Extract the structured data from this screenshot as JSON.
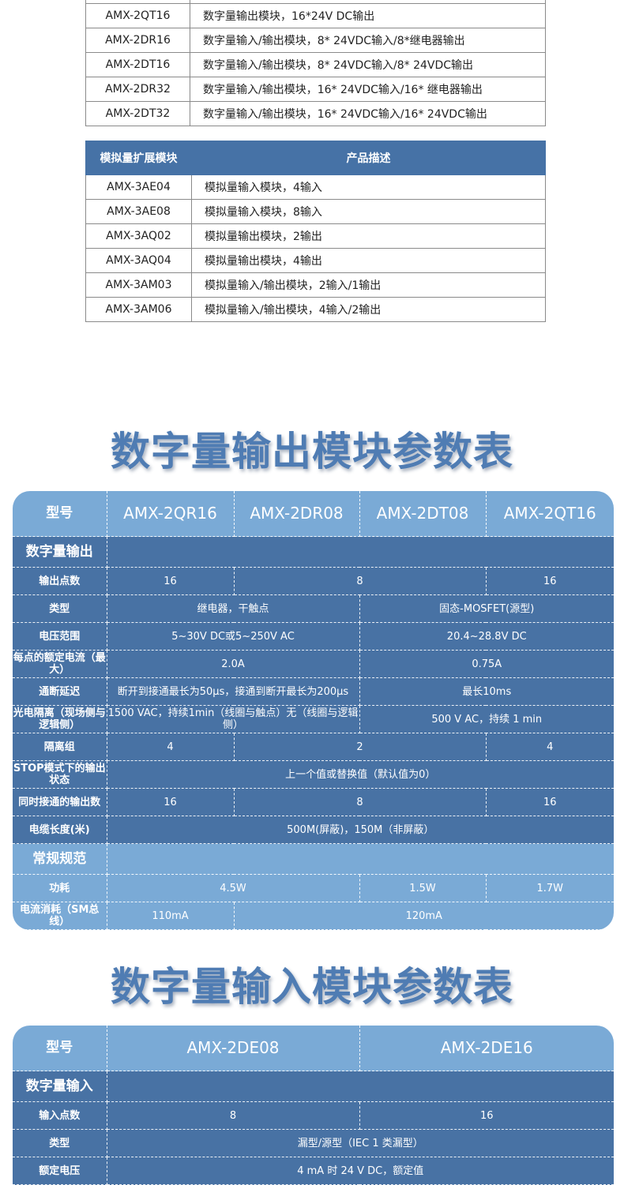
{
  "digital_list": [
    {
      "model": "AMX-2QT16",
      "desc": "数字量输出模块，16*24V DC输出"
    },
    {
      "model": "AMX-2DR16",
      "desc": "数字量输入/输出模块，8* 24VDC输入/8*继电器输出"
    },
    {
      "model": "AMX-2DT16",
      "desc": "数字量输入/输出模块，8* 24VDC输入/8* 24VDC输出"
    },
    {
      "model": "AMX-2DR32",
      "desc": "数字量输入/输出模块，16* 24VDC输入/16* 继电器输出"
    },
    {
      "model": "AMX-2DT32",
      "desc": "数字量输入/输出模块，16* 24VDC输入/16* 24VDC输出"
    }
  ],
  "analog_table": {
    "header_model": "模拟量扩展模块",
    "header_desc": "产品描述",
    "rows": [
      {
        "model": "AMX-3AE04",
        "desc": "模拟量输入模块，4输入"
      },
      {
        "model": "AMX-3AE08",
        "desc": "模拟量输入模块，8输入"
      },
      {
        "model": "AMX-3AQ02",
        "desc": "模拟量输出模块，2输出"
      },
      {
        "model": "AMX-3AQ04",
        "desc": "模拟量输出模块，4输出"
      },
      {
        "model": "AMX-3AM03",
        "desc": "模拟量输入/输出模块，2输入/1输出"
      },
      {
        "model": "AMX-3AM06",
        "desc": "模拟量输入/输出模块，4输入/2输出"
      }
    ]
  },
  "output_spec": {
    "title": "数字量输出模块参数表",
    "colors": {
      "header": "#7aaad6",
      "dark": "#4872a4"
    },
    "rows": [
      {
        "kind": "head",
        "label": "型号",
        "cells": [
          {
            "t": "AMX-2QR16",
            "s": 1
          },
          {
            "t": "AMX-2DR08",
            "s": 1
          },
          {
            "t": "AMX-2DT08",
            "s": 1
          },
          {
            "t": "AMX-2QT16",
            "s": 1
          }
        ]
      },
      {
        "kind": "sec dark",
        "label": "数字量输出",
        "cells": [
          {
            "t": "",
            "s": 4
          }
        ]
      },
      {
        "kind": "dark",
        "label": "输出点数",
        "cells": [
          {
            "t": "16",
            "s": 1
          },
          {
            "t": "8",
            "s": 2
          },
          {
            "t": "16",
            "s": 1
          }
        ]
      },
      {
        "kind": "dark",
        "label": "类型",
        "cells": [
          {
            "t": "继电器，干触点",
            "s": 2
          },
          {
            "t": "固态-MOSFET(源型)",
            "s": 2
          }
        ]
      },
      {
        "kind": "dark",
        "label": "电压范围",
        "cells": [
          {
            "t": "5~30V DC或5~250V AC",
            "s": 2
          },
          {
            "t": "20.4~28.8V DC",
            "s": 2
          }
        ]
      },
      {
        "kind": "dark",
        "label": "每点的额定电流（最大）",
        "cells": [
          {
            "t": "2.0A",
            "s": 2
          },
          {
            "t": "0.75A",
            "s": 2
          }
        ]
      },
      {
        "kind": "dark",
        "label": "通断延迟",
        "cells": [
          {
            "t": "断开到接通最长为50μs，接通到断开最长为200μs",
            "s": 2
          },
          {
            "t": "最长10ms",
            "s": 2
          }
        ]
      },
      {
        "kind": "dark",
        "label": "光电隔离（现场侧与逻辑侧）",
        "cells": [
          {
            "t": "1500 VAC，持续1min（线圈与触点）无（线圈与逻辑侧）",
            "s": 2
          },
          {
            "t": "500 V AC，持续 1 min",
            "s": 2
          }
        ]
      },
      {
        "kind": "dark",
        "label": "隔离组",
        "cells": [
          {
            "t": "4",
            "s": 1
          },
          {
            "t": "2",
            "s": 2
          },
          {
            "t": "4",
            "s": 1
          }
        ]
      },
      {
        "kind": "dark",
        "label": "STOP模式下的输出状态",
        "cells": [
          {
            "t": "上一个值或替换值（默认值为0）",
            "s": 4
          }
        ]
      },
      {
        "kind": "dark",
        "label": "同时接通的输出数",
        "cells": [
          {
            "t": "16",
            "s": 1
          },
          {
            "t": "8",
            "s": 2
          },
          {
            "t": "16",
            "s": 1
          }
        ]
      },
      {
        "kind": "dark",
        "label": "电缆长度(米)",
        "cells": [
          {
            "t": "500M(屏蔽)，150M（非屏蔽）",
            "s": 4
          }
        ]
      },
      {
        "kind": "sec light",
        "label": "常规规范",
        "cells": [
          {
            "t": "",
            "s": 4
          }
        ]
      },
      {
        "kind": "light",
        "label": "功耗",
        "cells": [
          {
            "t": "4.5W",
            "s": 2
          },
          {
            "t": "1.5W",
            "s": 1
          },
          {
            "t": "1.7W",
            "s": 1
          }
        ]
      },
      {
        "kind": "light",
        "label": "电流消耗（SM总线）",
        "cells": [
          {
            "t": "110mA",
            "s": 1
          },
          {
            "t": "120mA",
            "s": 3
          }
        ]
      }
    ]
  },
  "input_spec": {
    "title": "数字量输入模块参数表",
    "rows": [
      {
        "kind": "head",
        "label": "型号",
        "cells": [
          {
            "t": "AMX-2DE08",
            "s": 1
          },
          {
            "t": "AMX-2DE16",
            "s": 1
          }
        ]
      },
      {
        "kind": "sec dark",
        "label": "数字量输入",
        "cells": [
          {
            "t": "",
            "s": 2
          }
        ]
      },
      {
        "kind": "dark",
        "label": "输入点数",
        "cells": [
          {
            "t": "8",
            "s": 1
          },
          {
            "t": "16",
            "s": 1
          }
        ]
      },
      {
        "kind": "dark",
        "label": "类型",
        "cells": [
          {
            "t": "漏型/源型（IEC 1 类漏型）",
            "s": 2
          }
        ]
      },
      {
        "kind": "dark",
        "label": "额定电压",
        "cells": [
          {
            "t": "4 mA 时 24 V DC，额定值",
            "s": 2
          }
        ]
      }
    ]
  }
}
